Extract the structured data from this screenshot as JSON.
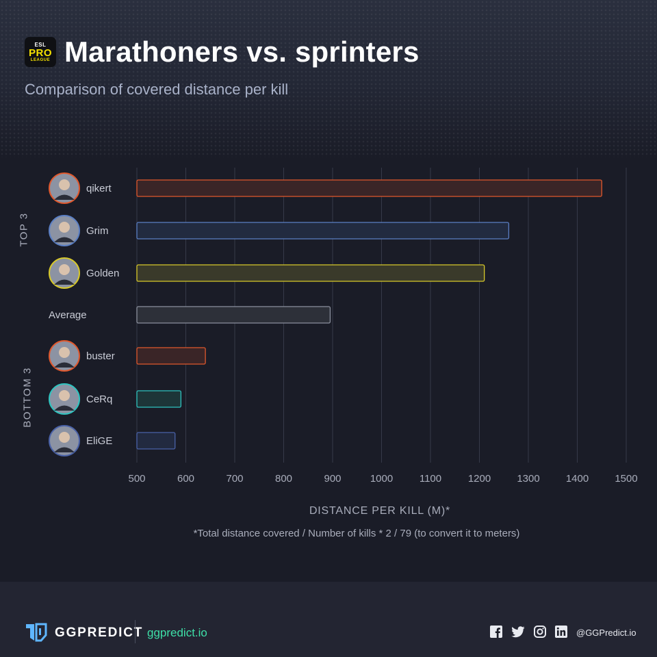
{
  "header": {
    "logo_line1": "ESL",
    "logo_line2": "PRO",
    "logo_line3": "LEAGUE",
    "title": "Marathoners vs. sprinters",
    "subtitle": "Comparison of covered distance per kill"
  },
  "groups": {
    "top": "TOP 3",
    "bottom": "BOTTOM 3"
  },
  "chart_data": {
    "type": "bar",
    "orientation": "horizontal",
    "categories": [
      "qikert",
      "Grim",
      "Golden",
      "Average",
      "buster",
      "CeRq",
      "EliGE"
    ],
    "values": [
      1450,
      1260,
      1210,
      895,
      640,
      590,
      578
    ],
    "colors": [
      {
        "stroke": "#e0582d",
        "fill": "#3a2527"
      },
      {
        "stroke": "#5b7fc4",
        "fill": "#222b40"
      },
      {
        "stroke": "#d8c92a",
        "fill": "#3a3a2a"
      },
      {
        "stroke": "#8b909e",
        "fill": "#2d3039"
      },
      {
        "stroke": "#e0582d",
        "fill": "#3a2527"
      },
      {
        "stroke": "#2fc4c0",
        "fill": "#1d3538"
      },
      {
        "stroke": "#4a62a8",
        "fill": "#222a40"
      }
    ],
    "xlim": [
      500,
      1500
    ],
    "xticks": [
      "500",
      "600",
      "700",
      "800",
      "900",
      "1000",
      "1100",
      "1200",
      "1300",
      "1400",
      "1500"
    ],
    "xlabel": "DISTANCE PER KILL (M)*",
    "grid": true
  },
  "footnote": "*Total distance covered / Number of kills * 2 / 79 (to convert it to meters)",
  "footer": {
    "brand": "GGPREDICT",
    "site": "ggpredict.io",
    "handle": "@GGPredict.io",
    "social_icons": [
      "facebook-icon",
      "twitter-icon",
      "instagram-icon",
      "linkedin-icon"
    ]
  }
}
